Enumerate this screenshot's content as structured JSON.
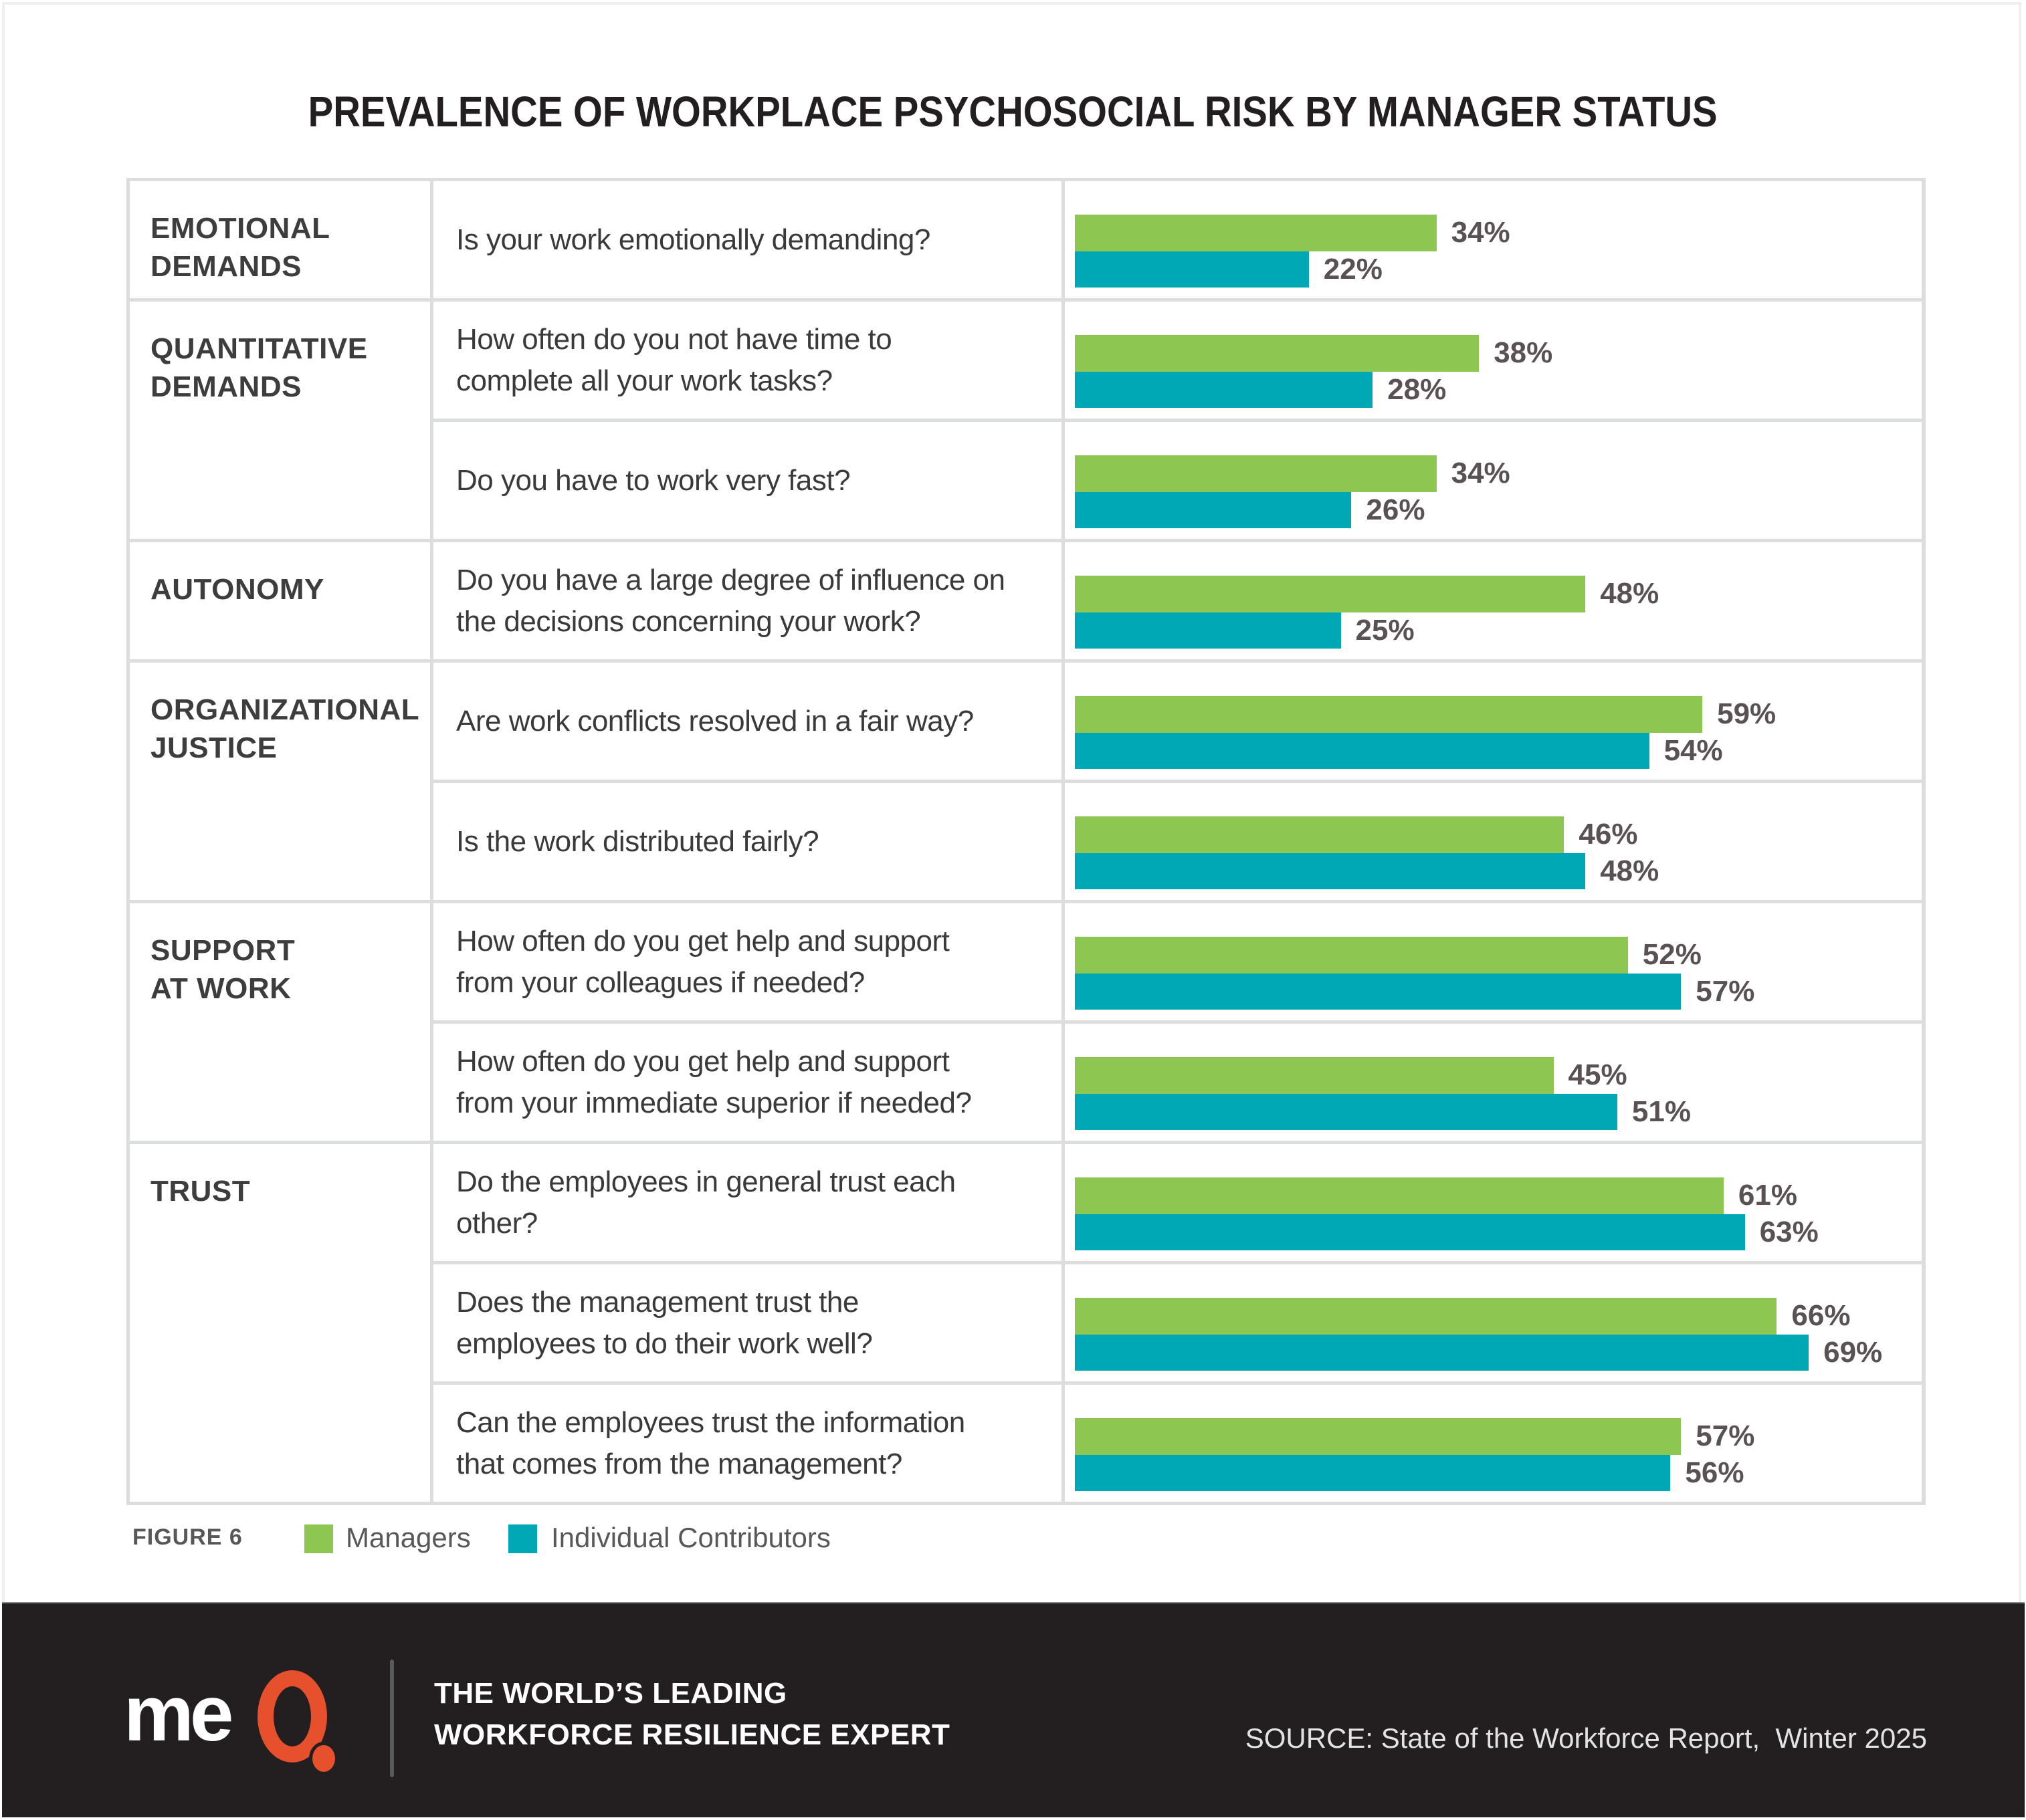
{
  "title": "PREVALENCE OF WORKPLACE PSYCHOSOCIAL RISK BY MANAGER STATUS",
  "colors": {
    "managers": "#8dc751",
    "individual_contributors": "#00a7b4",
    "label": "#5a5154",
    "footer_bg": "#231f20",
    "logo_accent": "#e6502d"
  },
  "categories": [
    {
      "label": "EMOTIONAL\nDEMANDS",
      "rows": 1
    },
    {
      "label": "QUANTITATIVE\nDEMANDS",
      "rows": 2
    },
    {
      "label": "AUTONOMY",
      "rows": 1
    },
    {
      "label": "ORGANIZATIONAL\nJUSTICE",
      "rows": 2
    },
    {
      "label": "SUPPORT\nAT WORK",
      "rows": 2
    },
    {
      "label": "TRUST",
      "rows": 3
    }
  ],
  "chart_data": {
    "type": "bar",
    "orientation": "horizontal",
    "title": "PREVALENCE OF WORKPLACE PSYCHOSOCIAL RISK BY MANAGER STATUS",
    "unit": "%",
    "xlim": [
      0,
      100
    ],
    "categories": [
      "Is your work emotionally demanding?",
      "How often do you not have time to\ncomplete all your work tasks?",
      "Do you have to work very fast?",
      "Do you have a large degree of influence on\nthe decisions concerning your work?",
      "Are work conflicts resolved in a fair way?",
      "Is the work distributed fairly?",
      "How often do you get help and support\nfrom your colleagues if needed?",
      "How often do you get help and support\nfrom your immediate superior if needed?",
      "Do the employees in general trust each\nother?",
      "Does the management trust the\nemployees to do their work well?",
      "Can the employees trust the information\nthat comes from the management?"
    ],
    "series": [
      {
        "name": "Managers",
        "values": [
          34,
          38,
          34,
          48,
          59,
          46,
          52,
          45,
          61,
          66,
          57
        ],
        "labels": [
          "34%",
          "38%",
          "34%",
          "48%",
          "59%",
          "46%",
          "52%",
          "45%",
          "61%",
          "66%",
          "57%"
        ]
      },
      {
        "name": "Individual Contributors",
        "values": [
          22,
          28,
          26,
          25,
          54,
          48,
          57,
          51,
          63,
          69,
          56
        ],
        "labels": [
          "22%",
          "28%",
          "26%",
          "25%",
          "54%",
          "48%",
          "57%",
          "51%",
          "63%",
          "69%",
          "56%"
        ]
      }
    ],
    "legend": "bottom-left"
  },
  "legend": {
    "figure_label": "FIGURE 6",
    "items": [
      {
        "label": "Managers"
      },
      {
        "label": "Individual Contributors"
      }
    ]
  },
  "footer": {
    "logo_text": "meQ",
    "logo_me": "me",
    "tagline": "THE WORLD’S LEADING\nWORKFORCE RESILIENCE EXPERT",
    "source": "SOURCE: State of the Workforce Report,  Winter 2025"
  }
}
